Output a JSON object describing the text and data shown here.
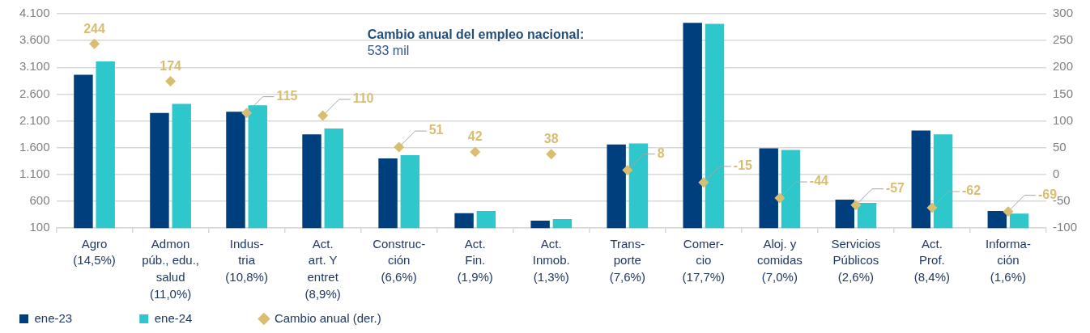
{
  "chart_data": {
    "type": "bar",
    "title": "Cambio anual del empleo nacional:",
    "subtitle": "533 mil",
    "categories": [
      "Agro\n(14,5%)",
      "Admon\npúb., edu.,\nsalud\n(11,0%)",
      "Indus-\ntria\n(10,8%)",
      "Act.\nart. Y\nentret\n(8,9%)",
      "Construc-\nción\n(6,6%)",
      "Act.\nFin.\n(1,9%)",
      "Act.\nInmob.\n(1,3%)",
      "Trans-\nporte\n(7,6%)",
      "Comer-\ncio\n(17,7%)",
      "Aloj. y\ncomidas\n(7,0%)",
      "Servicios\nPúblicos\n(2,6%)",
      "Act.\nProf.\n(8,4%)",
      "Informa-\nción\n(1,6%)"
    ],
    "series": [
      {
        "name": "ene-23",
        "color": "#003f7d",
        "values": [
          2960,
          2250,
          2270,
          1850,
          1400,
          380,
          240,
          1660,
          3930,
          1590,
          630,
          1920,
          420
        ]
      },
      {
        "name": "ene-24",
        "color": "#2ec8cc",
        "values": [
          3210,
          2420,
          2390,
          1960,
          1460,
          420,
          270,
          1680,
          3910,
          1560,
          570,
          1850,
          370
        ]
      },
      {
        "name": "Cambio anual (der.)",
        "type": "scatter",
        "axis": "y2",
        "color": "#d9be72",
        "values": [
          244,
          174,
          115,
          110,
          51,
          42,
          38,
          8,
          -15,
          -44,
          -57,
          -62,
          -69
        ],
        "value_labels": [
          "244",
          "174",
          "115",
          "110",
          "51",
          "42",
          "38",
          "8",
          "-15",
          "-44",
          "-57",
          "-62",
          "-69"
        ]
      }
    ],
    "ylim": [
      100,
      4100
    ],
    "yticks": [
      100,
      600,
      {
        "value": 1100,
        "label": "1.100"
      },
      {
        "value": 1600,
        "label": "1.600"
      },
      {
        "value": 2100,
        "label": "2.100"
      },
      {
        "value": 2600,
        "label": "2.600"
      },
      {
        "value": 3100,
        "label": "3.100"
      },
      {
        "value": 3600,
        "label": "3.600"
      },
      {
        "value": 4100,
        "label": "4.100"
      }
    ],
    "y2lim": [
      -100,
      300
    ],
    "y2ticks": [
      -100,
      -50,
      0,
      50,
      100,
      150,
      200,
      250,
      300
    ],
    "grid": "y",
    "legend": "bottom left",
    "marker": "diamond"
  }
}
